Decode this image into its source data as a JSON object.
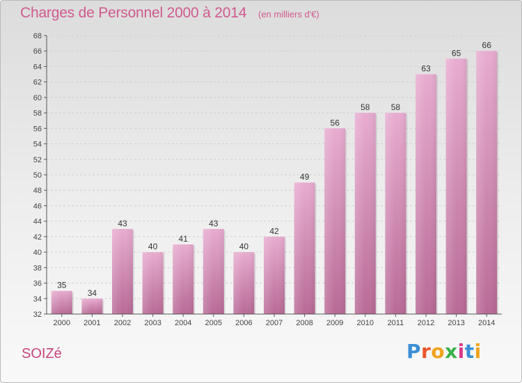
{
  "header": {
    "title": "Charges de Personnel 2000 à 2014",
    "subtitle": "(en milliers d'€)"
  },
  "footer": {
    "town": "SOIZé",
    "brand": "Proxiti"
  },
  "colors": {
    "title": "#d05a8e",
    "bar_top": "#e8acd0",
    "bar_bottom": "#b86a96",
    "grid": "#cfcfcf"
  },
  "chart_data": {
    "type": "bar",
    "categories": [
      "2000",
      "2001",
      "2002",
      "2003",
      "2004",
      "2005",
      "2006",
      "2007",
      "2008",
      "2009",
      "2010",
      "2011",
      "2012",
      "2013",
      "2014"
    ],
    "values": [
      35,
      34,
      43,
      40,
      41,
      43,
      40,
      42,
      49,
      56,
      58,
      58,
      63,
      65,
      66
    ],
    "title": "Charges de Personnel 2000 à 2014",
    "subtitle": "(en milliers d'€)",
    "ylim": [
      32,
      68
    ],
    "yticks": [
      32,
      34,
      36,
      38,
      40,
      42,
      44,
      46,
      48,
      50,
      52,
      54,
      56,
      58,
      60,
      62,
      64,
      66,
      68
    ],
    "grid": true,
    "data_labels": true
  }
}
